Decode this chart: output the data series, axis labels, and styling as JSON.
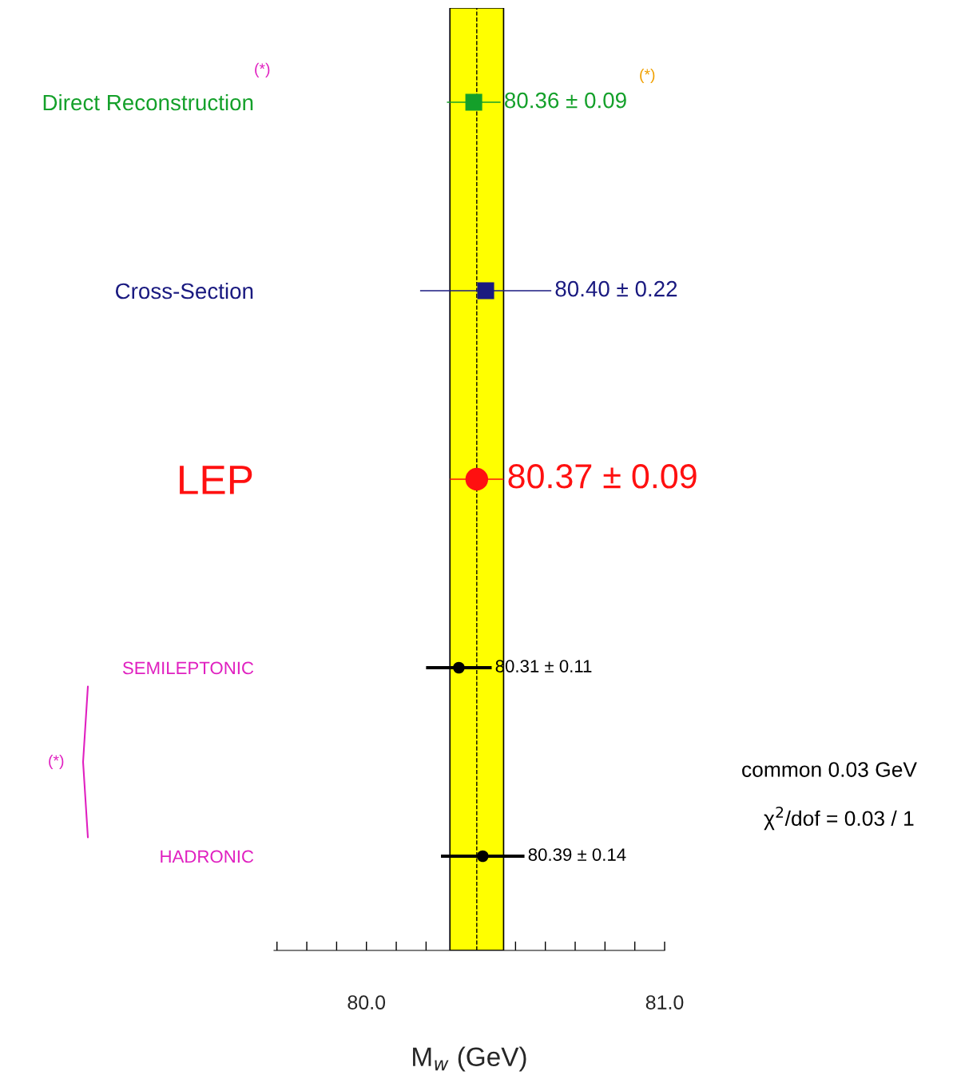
{
  "chart_data": {
    "type": "scatter",
    "orientation": "horizontal",
    "xlabel": "M$_{w}$ (GeV)",
    "categories": [
      "Direct Reconstruction",
      "Cross-Section",
      "LEP",
      "SEMILEPTONIC",
      "HADRONIC"
    ],
    "series": [
      {
        "color": "#14a02a",
        "marker": "square",
        "values": [
          80.36,
          null,
          null,
          null,
          null
        ],
        "errors": [
          0.09,
          null,
          null,
          null,
          null
        ],
        "value_labels": [
          "80.36 ± 0.09",
          null,
          null,
          null,
          null
        ]
      },
      {
        "color": "#1a1a80",
        "marker": "square",
        "values": [
          null,
          80.4,
          null,
          null,
          null
        ],
        "errors": [
          null,
          0.22,
          null,
          null,
          null
        ],
        "value_labels": [
          null,
          "80.40 ± 0.22",
          null,
          null,
          null
        ]
      },
      {
        "color": "#ff1010",
        "marker": "circle",
        "values": [
          null,
          null,
          80.37,
          null,
          null
        ],
        "errors": [
          null,
          null,
          0.09,
          null,
          null
        ],
        "value_labels": [
          null,
          null,
          "80.37 ± 0.09",
          null,
          null
        ]
      },
      {
        "color": "#000000",
        "marker": "circle",
        "values": [
          null,
          null,
          null,
          80.31,
          null
        ],
        "errors": [
          null,
          null,
          null,
          0.11,
          null
        ],
        "value_labels": [
          null,
          null,
          null,
          "80.31 ± 0.11",
          null
        ]
      },
      {
        "color": "#000000",
        "marker": "circle",
        "values": [
          null,
          null,
          null,
          null,
          80.39
        ],
        "errors": [
          null,
          null,
          null,
          null,
          0.14
        ],
        "value_labels": [
          null,
          null,
          null,
          null,
          "80.39 ± 0.14"
        ]
      }
    ],
    "bands": [
      {
        "axis": "x",
        "from": 80.28,
        "to": 80.46,
        "color": "#ffff00"
      }
    ],
    "ref_lines": [
      {
        "axis": "x",
        "value": 80.37,
        "line_style": "dashed",
        "color": "#000000"
      }
    ],
    "xlim": [
      79.69,
      81.0
    ],
    "xticks": [
      {
        "value": 79.7,
        "label": null
      },
      {
        "value": 79.8,
        "label": null
      },
      {
        "value": 79.9,
        "label": null
      },
      {
        "value": 80.0,
        "label": "80.0"
      },
      {
        "value": 80.1,
        "label": null
      },
      {
        "value": 80.2,
        "label": null
      },
      {
        "value": 80.3,
        "label": null
      },
      {
        "value": 80.4,
        "label": null
      },
      {
        "value": 80.5,
        "label": null
      },
      {
        "value": 80.6,
        "label": null
      },
      {
        "value": 80.7,
        "label": null
      },
      {
        "value": 80.8,
        "label": null
      },
      {
        "value": 80.9,
        "label": null
      },
      {
        "value": 81.0,
        "label": "81.0"
      }
    ],
    "grid": false,
    "legend": false,
    "annotations": [
      "(*)",
      "(*)",
      "(*)",
      "common 0.03 GeV",
      "χ$^{2}$/dof = 0.03 / 1"
    ]
  }
}
